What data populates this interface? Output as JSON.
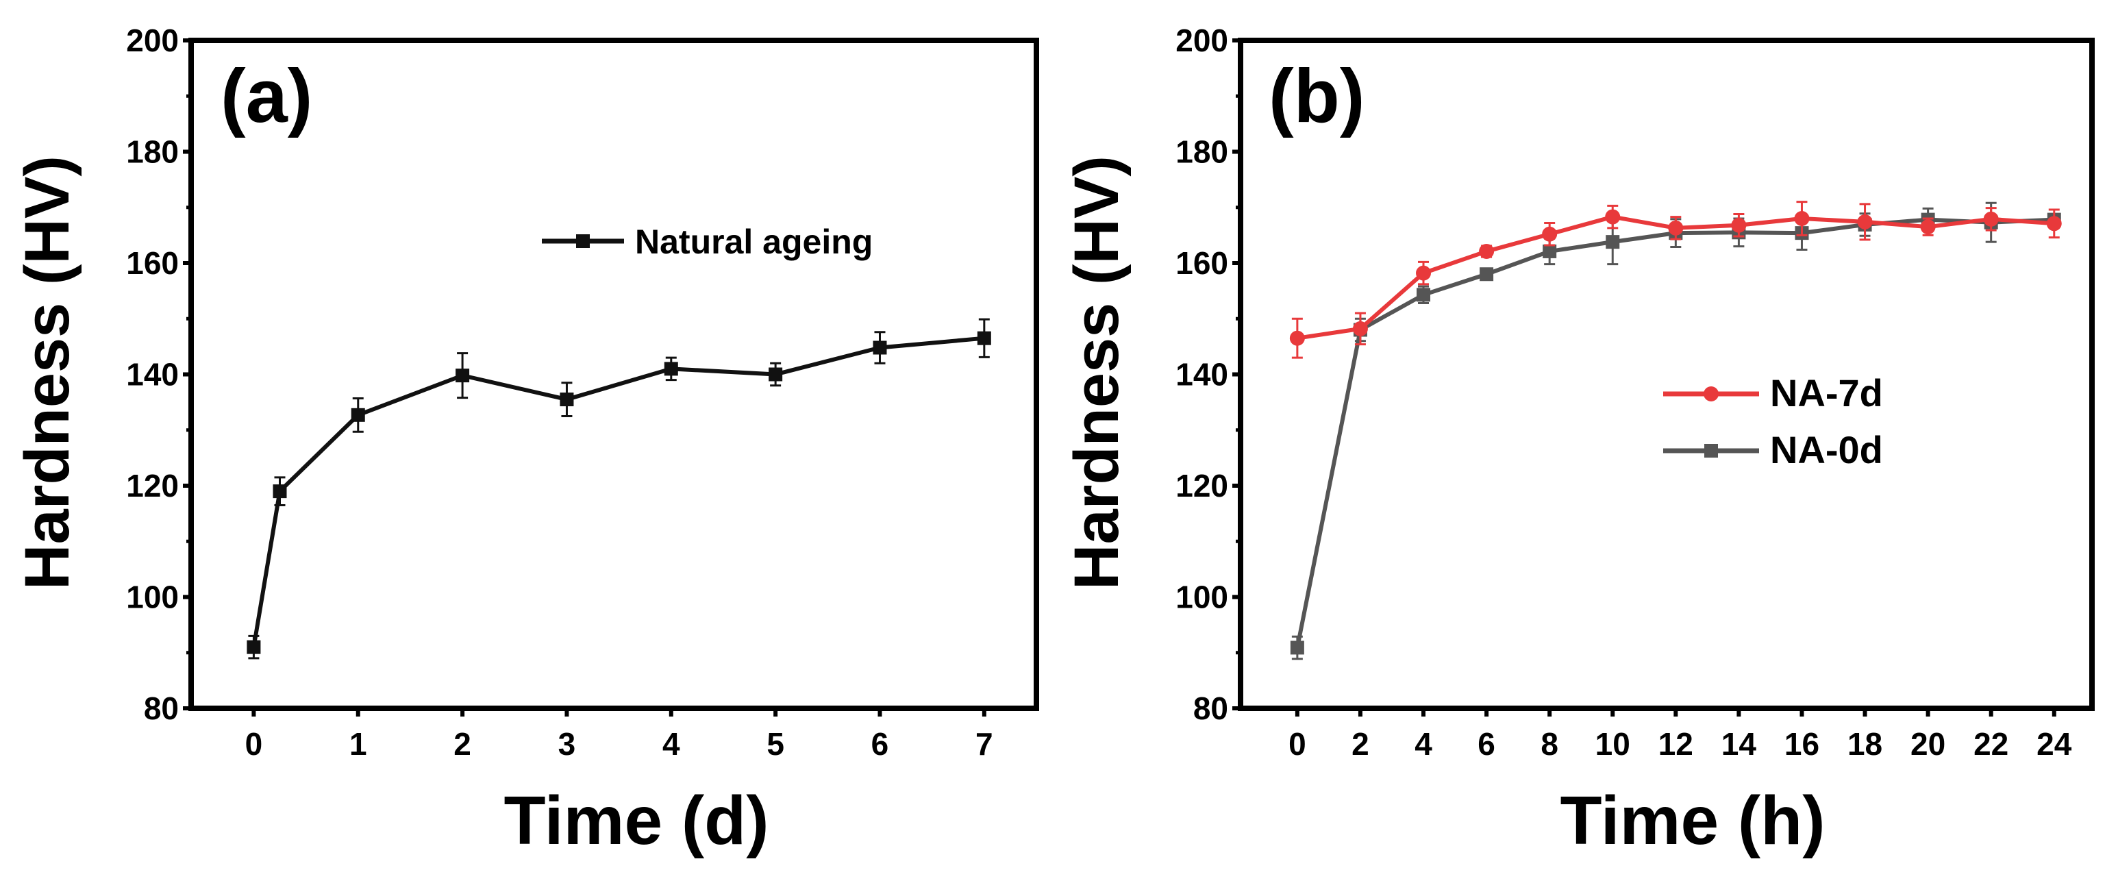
{
  "chart_data": [
    {
      "type": "line",
      "panel_label": "(a)",
      "xlabel": "Time (d)",
      "ylabel": "Hardness (HV)",
      "xlim": [
        -0.6,
        7.5
      ],
      "ylim": [
        80,
        200
      ],
      "xticks": [
        0,
        1,
        2,
        3,
        4,
        5,
        6,
        7
      ],
      "yticks": [
        80,
        100,
        120,
        140,
        160,
        180,
        200
      ],
      "legend_position": "upper-right",
      "series": [
        {
          "name": "Natural ageing",
          "color": "#111111",
          "marker": "square",
          "x": [
            0,
            0.25,
            1,
            2,
            3,
            4,
            5,
            6,
            7
          ],
          "y": [
            91,
            119,
            132.7,
            139.8,
            135.5,
            141,
            140,
            144.8,
            146.5
          ],
          "err": [
            2,
            2.5,
            3,
            4,
            3,
            2,
            2,
            2.8,
            3.4
          ]
        }
      ]
    },
    {
      "type": "line",
      "panel_label": "(b)",
      "xlabel": "Time (h)",
      "ylabel": "Hardness (HV)",
      "xlim": [
        -1.8,
        25.2
      ],
      "ylim": [
        80,
        200
      ],
      "xticks": [
        0,
        2,
        4,
        6,
        8,
        10,
        12,
        14,
        16,
        18,
        20,
        22,
        24
      ],
      "yticks": [
        80,
        100,
        120,
        140,
        160,
        180,
        200
      ],
      "legend_position": "center-right",
      "series": [
        {
          "name": "NA-7d",
          "color": "#e8393b",
          "marker": "circle",
          "x": [
            0,
            2,
            4,
            6,
            8,
            10,
            12,
            14,
            16,
            18,
            20,
            22,
            24
          ],
          "y": [
            146.5,
            148.2,
            158.2,
            162.1,
            165.2,
            168.3,
            166.3,
            166.8,
            168,
            167.4,
            166.5,
            167.9,
            167.1
          ],
          "err": [
            3.5,
            2.8,
            2,
            1,
            2,
            2,
            2,
            2,
            3,
            3.2,
            1.5,
            2,
            2.5
          ]
        },
        {
          "name": "NA-0d",
          "color": "#555555",
          "marker": "square",
          "x": [
            0,
            2,
            4,
            6,
            8,
            10,
            12,
            14,
            16,
            18,
            20,
            22,
            24
          ],
          "y": [
            90.9,
            148,
            154.3,
            158,
            162.1,
            163.8,
            165.4,
            165.5,
            165.4,
            166.9,
            167.8,
            167.3,
            167.8
          ],
          "err": [
            2,
            2,
            1.5,
            1,
            2.3,
            4,
            2.5,
            2.5,
            3,
            2,
            2,
            3.5,
            1
          ]
        }
      ]
    }
  ]
}
